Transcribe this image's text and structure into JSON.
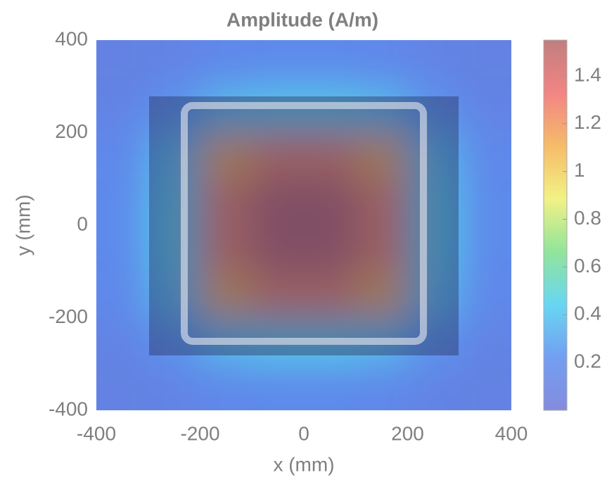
{
  "chart_data": {
    "type": "heatmap",
    "title": "Amplitude (A/m)",
    "xlabel": "x (mm)",
    "ylabel": "y (mm)",
    "x": [
      -350,
      -250,
      -150,
      -50,
      50,
      150,
      250,
      350
    ],
    "y": [
      -350,
      -250,
      -150,
      -50,
      50,
      150,
      250,
      350
    ],
    "z": [
      [
        0.12,
        0.15,
        0.2,
        0.22,
        0.22,
        0.2,
        0.15,
        0.12
      ],
      [
        0.15,
        0.25,
        0.4,
        0.45,
        0.45,
        0.4,
        0.25,
        0.15
      ],
      [
        0.2,
        0.4,
        1.1,
        1.25,
        1.25,
        1.1,
        0.4,
        0.2
      ],
      [
        0.22,
        0.45,
        1.25,
        1.5,
        1.5,
        1.25,
        0.45,
        0.22
      ],
      [
        0.22,
        0.45,
        1.25,
        1.5,
        1.5,
        1.25,
        0.45,
        0.22
      ],
      [
        0.2,
        0.4,
        1.1,
        1.25,
        1.25,
        1.1,
        0.4,
        0.2
      ],
      [
        0.15,
        0.25,
        0.4,
        0.45,
        0.45,
        0.4,
        0.25,
        0.15
      ],
      [
        0.12,
        0.15,
        0.2,
        0.22,
        0.22,
        0.2,
        0.15,
        0.12
      ]
    ],
    "xlim": [
      -400,
      400
    ],
    "ylim": [
      -400,
      400
    ],
    "xticks": [
      -400,
      -200,
      0,
      200,
      400
    ],
    "yticks": [
      -400,
      -200,
      0,
      200,
      400
    ],
    "clim": [
      0,
      1.55
    ],
    "cticks": [
      0.2,
      0.4,
      0.6,
      0.8,
      1,
      1.2,
      1.4
    ],
    "colormap": [
      "#6f78d8",
      "#5b8ef0",
      "#4fd0f0",
      "#7fe08a",
      "#f0f070",
      "#f5b050",
      "#f07070",
      "#b86868"
    ]
  }
}
